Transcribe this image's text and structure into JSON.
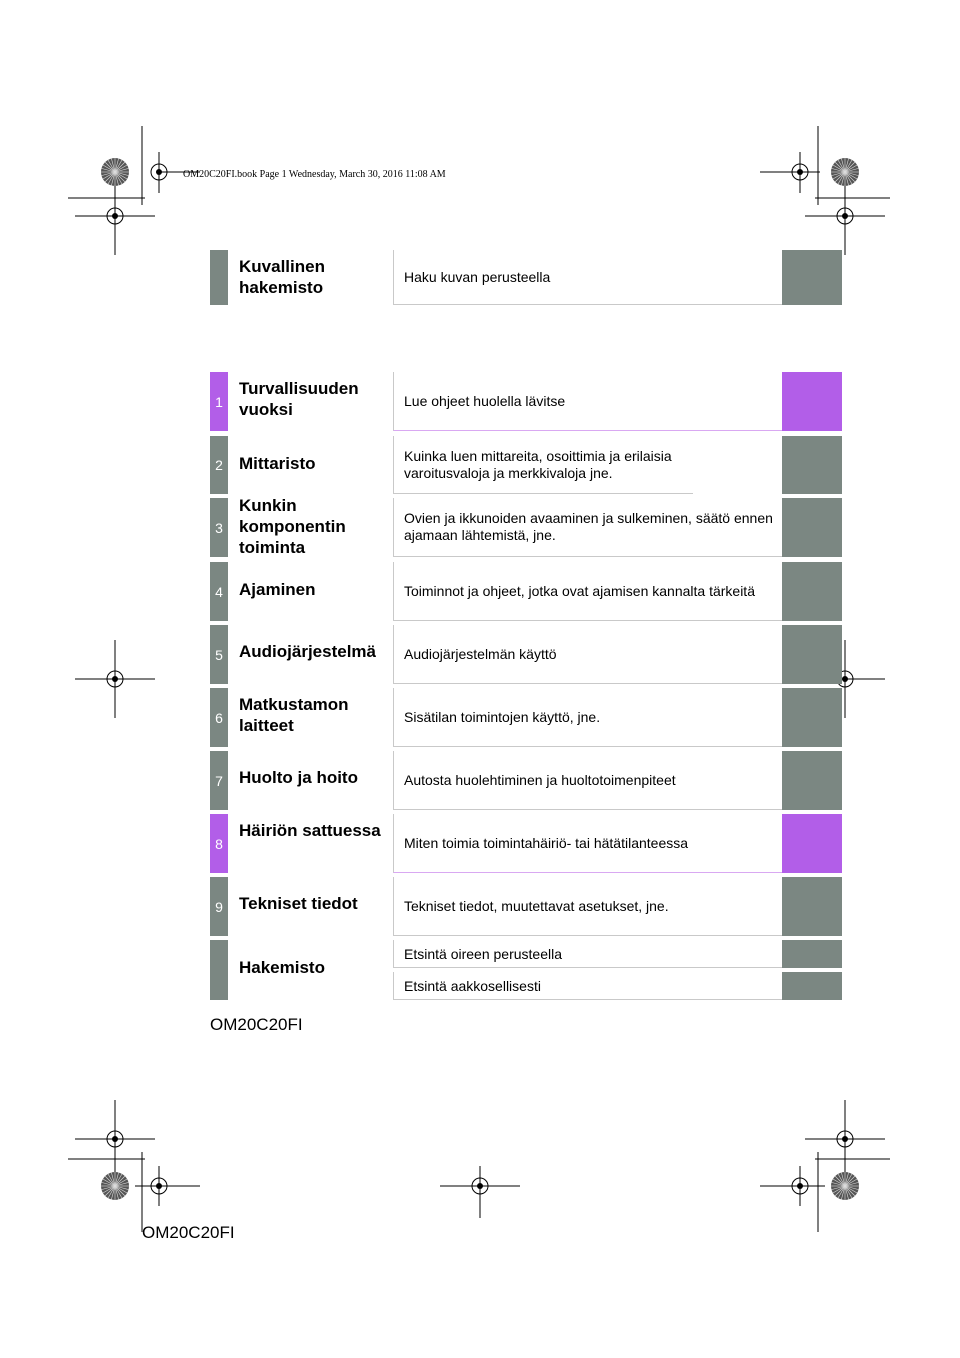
{
  "header": {
    "book_line": "OM20C20FI.book  Page 1  Wednesday, March 30, 2016  11:08 AM"
  },
  "sections": [
    {
      "num": "",
      "title": "Kuvallinen hakemisto",
      "desc": "Haku kuvan perusteella",
      "accent": "gray"
    },
    {
      "num": "1",
      "title": "Turvallisuuden vuoksi",
      "desc": "Lue ohjeet huolella lävitse",
      "accent": "pink"
    },
    {
      "num": "2",
      "title": "Mittaristo",
      "desc": "Kuinka luen mittareita, osoittimia ja erilaisia varoitusvaloja ja merkkivaloja jne.",
      "accent": "gray"
    },
    {
      "num": "3",
      "title": "Kunkin komponentin toiminta",
      "desc": "Ovien ja ikkunoiden avaaminen ja sulkeminen, säätö ennen ajamaan lähtemistä, jne.",
      "accent": "gray"
    },
    {
      "num": "4",
      "title": "Ajaminen",
      "desc": "Toiminnot ja ohjeet, jotka ovat ajamisen kannalta tärkeitä",
      "accent": "gray"
    },
    {
      "num": "5",
      "title": "Audiojärjestelmä",
      "desc": "Audiojärjestelmän käyttö",
      "accent": "gray"
    },
    {
      "num": "6",
      "title": "Matkustamon laitteet",
      "desc": "Sisätilan toimintojen käyttö, jne.",
      "accent": "gray"
    },
    {
      "num": "7",
      "title": "Huolto ja hoito",
      "desc": "Autosta huolehtiminen ja huoltotoimenpiteet",
      "accent": "gray"
    },
    {
      "num": "8",
      "title": "Häiriön sattuessa",
      "desc": "Miten toimia toimintahäiriö- tai hätätilanteessa",
      "accent": "pink"
    },
    {
      "num": "9",
      "title": "Tekniset tiedot",
      "desc": "Tekniset tiedot, muutettavat asetukset, jne.",
      "accent": "gray"
    }
  ],
  "index": {
    "title": "Hakemisto",
    "desc1": "Etsintä oireen perusteella",
    "desc2": "Etsintä aakkosellisesti"
  },
  "codes": {
    "upper": "OM20C20FI",
    "lower": "OM20C20FI"
  },
  "colors": {
    "tab_gray": "#7b8782",
    "tab_pink": "#b25ee8"
  }
}
